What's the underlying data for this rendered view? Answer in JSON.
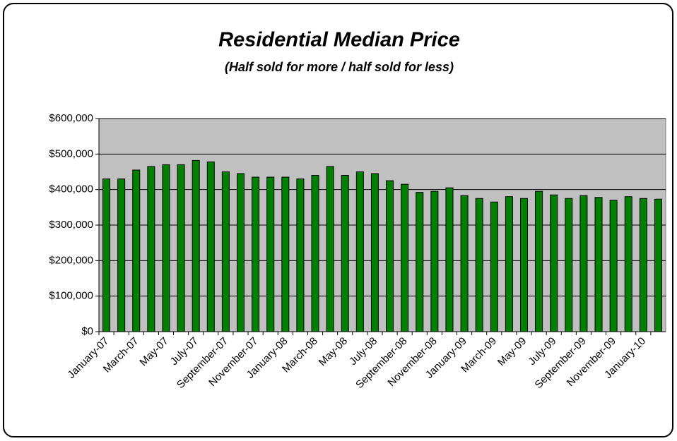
{
  "chart_data": {
    "type": "bar",
    "title": "Residential Median Price",
    "subtitle": "(Half sold for more / half sold for less)",
    "categories": [
      "January-07",
      null,
      "March-07",
      null,
      "May-07",
      null,
      "July-07",
      null,
      "September-07",
      null,
      "November-07",
      null,
      "January-08",
      null,
      "March-08",
      null,
      "May-08",
      null,
      "July-08",
      null,
      "September-08",
      null,
      "November-08",
      null,
      "January-09",
      null,
      "March-09",
      null,
      "May-09",
      null,
      "July-09",
      null,
      "September-09",
      null,
      "November-09",
      null,
      "January-10",
      null
    ],
    "values": [
      430000,
      430000,
      455000,
      465000,
      470000,
      470000,
      482000,
      478000,
      450000,
      445000,
      435000,
      435000,
      435000,
      430000,
      440000,
      465000,
      440000,
      450000,
      445000,
      425000,
      415000,
      392000,
      395000,
      405000,
      383000,
      375000,
      365000,
      380000,
      375000,
      395000,
      385000,
      375000,
      383000,
      378000,
      370000,
      380000,
      375000,
      373000
    ],
    "color": "#008000",
    "ylim": [
      0,
      600000
    ],
    "yticks": [
      {
        "value": 0,
        "label": "$0"
      },
      {
        "value": 100000,
        "label": "$100,000"
      },
      {
        "value": 200000,
        "label": "$200,000"
      },
      {
        "value": 300000,
        "label": "$300,000"
      },
      {
        "value": 400000,
        "label": "$400,000"
      },
      {
        "value": 500000,
        "label": "$500,000"
      },
      {
        "value": 600000,
        "label": "$600,000"
      }
    ],
    "grid": true
  }
}
